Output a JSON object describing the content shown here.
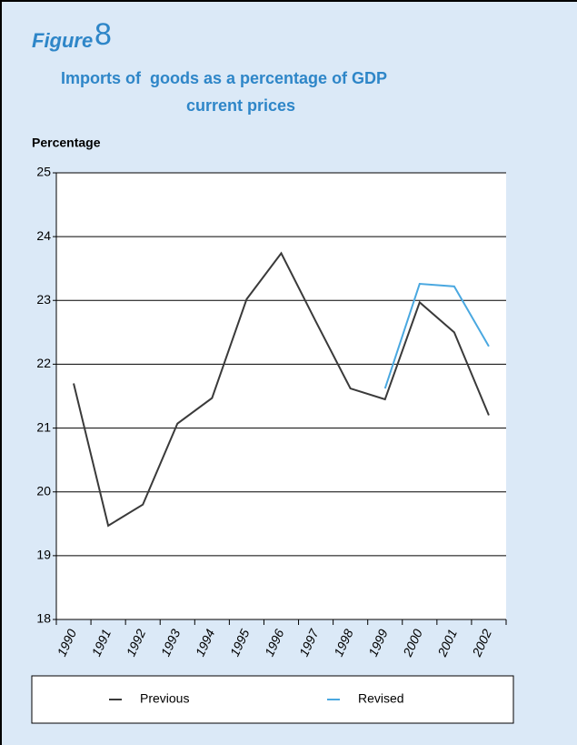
{
  "chart_data": {
    "type": "line",
    "figure_label": "Figure",
    "figure_number": "8",
    "title": "Imports of  goods as a percentage of GDP",
    "subtitle": "current prices",
    "y_label": "Percentage",
    "categories": [
      "1990",
      "1991",
      "1992",
      "1993",
      "1994",
      "1995",
      "1996",
      "1997",
      "1998",
      "1999",
      "2000",
      "2001",
      "2002"
    ],
    "series": [
      {
        "name": "Previous",
        "color": "#3a3a3a",
        "values": [
          21.7,
          19.47,
          19.8,
          21.07,
          21.47,
          23.02,
          23.74,
          22.67,
          21.62,
          21.45,
          22.97,
          22.5,
          21.2
        ]
      },
      {
        "name": "Revised",
        "color": "#4aa8e0",
        "values": [
          null,
          null,
          null,
          null,
          null,
          null,
          null,
          null,
          null,
          21.62,
          23.26,
          23.22,
          22.28
        ]
      }
    ],
    "ylim": [
      18,
      25
    ],
    "yticks": [
      18,
      19,
      20,
      21,
      22,
      23,
      24,
      25
    ],
    "grid": true
  }
}
